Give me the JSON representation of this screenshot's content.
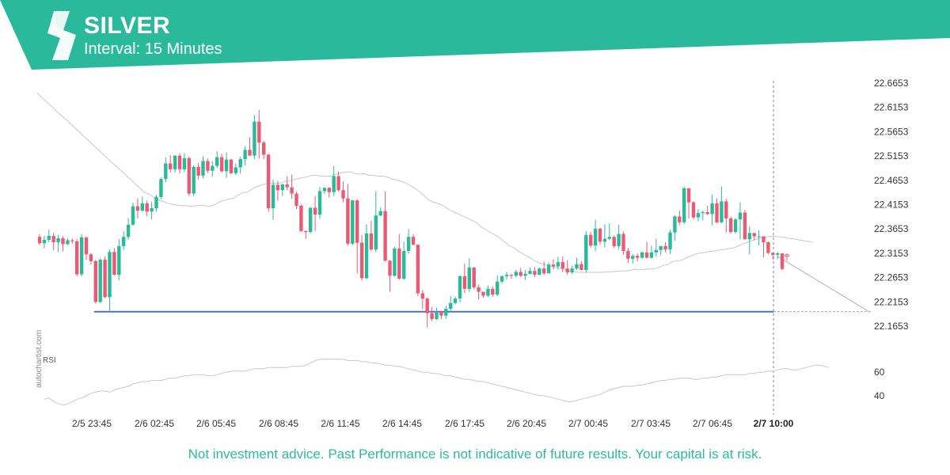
{
  "header": {
    "title": "SILVER",
    "subtitle": "Interval: 15 Minutes",
    "band_color": "#2aba9b",
    "logo": "autochartist-logo-icon"
  },
  "watermark": "autochartist.com",
  "footer": "Not investment advice. Past Performance is not indicative of future results. Your capital is at risk.",
  "colors": {
    "up": "#2aba9b",
    "down": "#ea5a72",
    "support": "#4a72c0",
    "ma": "#c8c8c8",
    "rsi": "#c8c8c8",
    "forecast": "#b0b0b0",
    "axis_text": "#333333"
  },
  "chart_data": {
    "type": "candlestick",
    "y_ticks": [
      "22.6653",
      "22.6153",
      "22.5653",
      "22.5153",
      "22.4653",
      "22.4153",
      "22.3653",
      "22.3153",
      "22.2653",
      "22.2153",
      "22.1653"
    ],
    "x_ticks": [
      "2/5 23:45",
      "2/6 02:45",
      "2/6 05:45",
      "2/6 08:45",
      "2/6 11:45",
      "2/6 14:45",
      "2/6 17:45",
      "2/6 20:45",
      "2/7 00:45",
      "2/7 03:45",
      "2/7 06:45"
    ],
    "highlight_time": "2/7 10:00",
    "ylim": [
      22.1503,
      22.6803
    ],
    "support_level": 22.195,
    "forecast_target": 22.195,
    "candles": [
      [
        22.349,
        22.336,
        22.355,
        22.332
      ],
      [
        22.336,
        22.343,
        22.351,
        22.325
      ],
      [
        22.343,
        22.351,
        22.364,
        22.338
      ],
      [
        22.351,
        22.338,
        22.357,
        22.321
      ],
      [
        22.338,
        22.346,
        22.353,
        22.318
      ],
      [
        22.346,
        22.334,
        22.35,
        22.319
      ],
      [
        22.334,
        22.342,
        22.346,
        22.332
      ],
      [
        22.342,
        22.34,
        22.345,
        22.335
      ],
      [
        22.34,
        22.272,
        22.345,
        22.268
      ],
      [
        22.272,
        22.348,
        22.355,
        22.268
      ],
      [
        22.348,
        22.313,
        22.349,
        22.302
      ],
      [
        22.313,
        22.299,
        22.316,
        22.292
      ],
      [
        22.299,
        22.215,
        22.302,
        22.212
      ],
      [
        22.215,
        22.302,
        22.305,
        22.213
      ],
      [
        22.302,
        22.225,
        22.309,
        22.223
      ],
      [
        22.225,
        22.318,
        22.323,
        22.193
      ],
      [
        22.318,
        22.271,
        22.326,
        22.27
      ],
      [
        22.271,
        22.33,
        22.344,
        22.26
      ],
      [
        22.33,
        22.349,
        22.36,
        22.322
      ],
      [
        22.349,
        22.374,
        22.388,
        22.343
      ],
      [
        22.374,
        22.412,
        22.419,
        22.372
      ],
      [
        22.412,
        22.403,
        22.428,
        22.387
      ],
      [
        22.403,
        22.418,
        22.432,
        22.401
      ],
      [
        22.418,
        22.401,
        22.424,
        22.391
      ],
      [
        22.401,
        22.408,
        22.421,
        22.385
      ],
      [
        22.408,
        22.431,
        22.435,
        22.401
      ],
      [
        22.431,
        22.468,
        22.471,
        22.427
      ],
      [
        22.468,
        22.5,
        22.512,
        22.461
      ],
      [
        22.5,
        22.488,
        22.517,
        22.482
      ],
      [
        22.488,
        22.516,
        22.517,
        22.481
      ],
      [
        22.516,
        22.488,
        22.521,
        22.479
      ],
      [
        22.488,
        22.511,
        22.521,
        22.482
      ],
      [
        22.511,
        22.438,
        22.514,
        22.433
      ],
      [
        22.438,
        22.493,
        22.496,
        22.433
      ],
      [
        22.493,
        22.475,
        22.501,
        22.467
      ],
      [
        22.475,
        22.505,
        22.515,
        22.469
      ],
      [
        22.505,
        22.485,
        22.51,
        22.48
      ],
      [
        22.485,
        22.495,
        22.505,
        22.473
      ],
      [
        22.495,
        22.513,
        22.525,
        22.491
      ],
      [
        22.513,
        22.484,
        22.52,
        22.481
      ],
      [
        22.484,
        22.508,
        22.523,
        22.47
      ],
      [
        22.508,
        22.48,
        22.509,
        22.478
      ],
      [
        22.48,
        22.492,
        22.5,
        22.476
      ],
      [
        22.492,
        22.509,
        22.514,
        22.479
      ],
      [
        22.509,
        22.528,
        22.536,
        22.496
      ],
      [
        22.528,
        22.516,
        22.554,
        22.516
      ],
      [
        22.516,
        22.586,
        22.6,
        22.509
      ],
      [
        22.586,
        22.543,
        22.61,
        22.51
      ],
      [
        22.543,
        22.518,
        22.546,
        22.509
      ],
      [
        22.518,
        22.408,
        22.52,
        22.401
      ],
      [
        22.408,
        22.456,
        22.467,
        22.384
      ],
      [
        22.456,
        22.445,
        22.464,
        22.423
      ],
      [
        22.445,
        22.457,
        22.458,
        22.433
      ],
      [
        22.457,
        22.451,
        22.474,
        22.445
      ],
      [
        22.451,
        22.438,
        22.477,
        22.427
      ],
      [
        22.438,
        22.413,
        22.442,
        22.406
      ],
      [
        22.413,
        22.361,
        22.416,
        22.359
      ],
      [
        22.361,
        22.359,
        22.362,
        22.345
      ],
      [
        22.359,
        22.409,
        22.409,
        22.356
      ],
      [
        22.409,
        22.395,
        22.433,
        22.361
      ],
      [
        22.395,
        22.443,
        22.452,
        22.386
      ],
      [
        22.443,
        22.45,
        22.45,
        22.437
      ],
      [
        22.45,
        22.441,
        22.451,
        22.43
      ],
      [
        22.441,
        22.474,
        22.495,
        22.433
      ],
      [
        22.474,
        22.445,
        22.484,
        22.442
      ],
      [
        22.445,
        22.428,
        22.463,
        22.42
      ],
      [
        22.428,
        22.335,
        22.458,
        22.331
      ],
      [
        22.335,
        22.424,
        22.425,
        22.332
      ],
      [
        22.424,
        22.337,
        22.427,
        22.274
      ],
      [
        22.337,
        22.264,
        22.353,
        22.259
      ],
      [
        22.264,
        22.356,
        22.375,
        22.262
      ],
      [
        22.356,
        22.323,
        22.382,
        22.32
      ],
      [
        22.323,
        22.393,
        22.443,
        22.318
      ],
      [
        22.393,
        22.402,
        22.41,
        22.391
      ],
      [
        22.402,
        22.3,
        22.443,
        22.298
      ],
      [
        22.3,
        22.269,
        22.301,
        22.236
      ],
      [
        22.269,
        22.325,
        22.329,
        22.267
      ],
      [
        22.325,
        22.263,
        22.355,
        22.261
      ],
      [
        22.263,
        22.32,
        22.339,
        22.26
      ],
      [
        22.32,
        22.349,
        22.365,
        22.314
      ],
      [
        22.349,
        22.333,
        22.354,
        22.331
      ],
      [
        22.333,
        22.233,
        22.333,
        22.227
      ],
      [
        22.233,
        22.222,
        22.24,
        22.2
      ],
      [
        22.222,
        22.192,
        22.225,
        22.163
      ],
      [
        22.192,
        22.18,
        22.205,
        22.176
      ],
      [
        22.18,
        22.195,
        22.203,
        22.178
      ],
      [
        22.195,
        22.187,
        22.196,
        22.18
      ],
      [
        22.187,
        22.201,
        22.207,
        22.18
      ],
      [
        22.201,
        22.213,
        22.227,
        22.195
      ],
      [
        22.213,
        22.222,
        22.226,
        22.21
      ],
      [
        22.222,
        22.268,
        22.27,
        22.214
      ],
      [
        22.268,
        22.242,
        22.294,
        22.233
      ],
      [
        22.242,
        22.286,
        22.305,
        22.236
      ],
      [
        22.286,
        22.245,
        22.287,
        22.242
      ],
      [
        22.245,
        22.236,
        22.251,
        22.22
      ],
      [
        22.236,
        22.228,
        22.235,
        22.224
      ],
      [
        22.228,
        22.242,
        22.249,
        22.225
      ],
      [
        22.242,
        22.23,
        22.246,
        22.226
      ],
      [
        22.23,
        22.257,
        22.27,
        22.227
      ],
      [
        22.257,
        22.268,
        22.27,
        22.253
      ],
      [
        22.268,
        22.271,
        22.277,
        22.261
      ],
      [
        22.271,
        22.269,
        22.272,
        22.263
      ],
      [
        22.269,
        22.277,
        22.281,
        22.266
      ],
      [
        22.277,
        22.269,
        22.285,
        22.266
      ],
      [
        22.269,
        22.273,
        22.281,
        22.26
      ],
      [
        22.273,
        22.279,
        22.286,
        22.272
      ],
      [
        22.279,
        22.271,
        22.287,
        22.266
      ],
      [
        22.271,
        22.284,
        22.286,
        22.27
      ],
      [
        22.284,
        22.274,
        22.298,
        22.271
      ],
      [
        22.274,
        22.292,
        22.296,
        22.274
      ],
      [
        22.292,
        22.288,
        22.303,
        22.282
      ],
      [
        22.288,
        22.297,
        22.308,
        22.282
      ],
      [
        22.297,
        22.284,
        22.309,
        22.276
      ],
      [
        22.284,
        22.276,
        22.301,
        22.271
      ],
      [
        22.276,
        22.284,
        22.29,
        22.273
      ],
      [
        22.284,
        22.293,
        22.306,
        22.281
      ],
      [
        22.293,
        22.281,
        22.299,
        22.28
      ],
      [
        22.281,
        22.353,
        22.361,
        22.276
      ],
      [
        22.353,
        22.331,
        22.359,
        22.327
      ],
      [
        22.331,
        22.366,
        22.384,
        22.32
      ],
      [
        22.366,
        22.339,
        22.368,
        22.333
      ],
      [
        22.339,
        22.345,
        22.375,
        22.327
      ],
      [
        22.345,
        22.349,
        22.377,
        22.342
      ],
      [
        22.349,
        22.33,
        22.352,
        22.326
      ],
      [
        22.33,
        22.355,
        22.374,
        22.323
      ],
      [
        22.355,
        22.32,
        22.36,
        22.312
      ],
      [
        22.32,
        22.304,
        22.326,
        22.295
      ],
      [
        22.304,
        22.31,
        22.313,
        22.294
      ],
      [
        22.31,
        22.306,
        22.315,
        22.299
      ],
      [
        22.306,
        22.317,
        22.319,
        22.304
      ],
      [
        22.317,
        22.306,
        22.339,
        22.305
      ],
      [
        22.306,
        22.317,
        22.331,
        22.304
      ],
      [
        22.317,
        22.322,
        22.345,
        22.308
      ],
      [
        22.322,
        22.33,
        22.33,
        22.311
      ],
      [
        22.33,
        22.323,
        22.338,
        22.317
      ],
      [
        22.323,
        22.358,
        22.364,
        22.314
      ],
      [
        22.358,
        22.391,
        22.393,
        22.341
      ],
      [
        22.391,
        22.379,
        22.403,
        22.373
      ],
      [
        22.379,
        22.449,
        22.452,
        22.375
      ],
      [
        22.449,
        22.42,
        22.449,
        22.387
      ],
      [
        22.42,
        22.389,
        22.423,
        22.385
      ],
      [
        22.389,
        22.398,
        22.406,
        22.381
      ],
      [
        22.398,
        22.4,
        22.403,
        22.383
      ],
      [
        22.4,
        22.396,
        22.413,
        22.394
      ],
      [
        22.396,
        22.418,
        22.436,
        22.373
      ],
      [
        22.418,
        22.379,
        22.428,
        22.377
      ],
      [
        22.379,
        22.422,
        22.453,
        22.377
      ],
      [
        22.422,
        22.387,
        22.427,
        22.358
      ],
      [
        22.387,
        22.359,
        22.391,
        22.356
      ],
      [
        22.359,
        22.385,
        22.388,
        22.356
      ],
      [
        22.385,
        22.399,
        22.42,
        22.344
      ],
      [
        22.399,
        22.344,
        22.404,
        22.344
      ],
      [
        22.344,
        22.357,
        22.371,
        22.313
      ],
      [
        22.357,
        22.35,
        22.35,
        22.342
      ],
      [
        22.35,
        22.35,
        22.362,
        22.331
      ],
      [
        22.35,
        22.338,
        22.342,
        22.307
      ],
      [
        22.338,
        22.316,
        22.34,
        22.313
      ],
      [
        22.316,
        22.312,
        22.315,
        22.302
      ],
      [
        22.312,
        22.315,
        22.318,
        22.303
      ],
      [
        22.315,
        22.283,
        22.315,
        22.28
      ]
    ],
    "forecast_candles": [
      [
        22.312,
        22.309,
        22.315,
        22.3
      ]
    ],
    "ma": [
      22.645,
      22.636,
      22.627,
      22.618,
      22.609,
      22.6,
      22.592,
      22.583,
      22.574,
      22.565,
      22.556,
      22.547,
      22.538,
      22.529,
      22.52,
      22.511,
      22.502,
      22.494,
      22.485,
      22.476,
      22.467,
      22.458,
      22.449,
      22.44,
      22.437,
      22.43,
      22.425,
      22.422,
      22.418,
      22.416,
      22.414,
      22.413,
      22.413,
      22.412,
      22.413,
      22.414,
      22.413,
      22.412,
      22.415,
      22.421,
      22.424,
      22.427,
      22.428,
      22.435,
      22.44,
      22.441,
      22.447,
      22.452,
      22.456,
      22.458,
      22.46,
      22.459,
      22.46,
      22.463,
      22.464,
      22.467,
      22.469,
      22.471,
      22.473,
      22.476,
      22.475,
      22.474,
      22.474,
      22.474,
      22.478,
      22.481,
      22.482,
      22.483,
      22.479,
      22.478,
      22.479,
      22.476,
      22.475,
      22.474,
      22.474,
      22.472,
      22.468,
      22.466,
      22.463,
      22.459,
      22.454,
      22.448,
      22.441,
      22.432,
      22.424,
      22.42,
      22.417,
      22.413,
      22.406,
      22.401,
      22.397,
      22.392,
      22.388,
      22.383,
      22.379,
      22.37,
      22.364,
      22.358,
      22.353,
      22.347,
      22.339,
      22.331,
      22.327,
      22.32,
      22.314,
      22.309,
      22.303,
      22.297,
      22.294,
      22.291,
      22.288,
      22.286,
      22.284,
      22.281,
      22.279,
      22.277,
      22.276,
      22.276,
      22.276,
      22.276,
      22.276,
      22.276,
      22.277,
      22.277,
      22.278,
      22.279,
      22.279,
      22.28,
      22.283,
      22.281,
      22.282,
      22.283,
      22.283,
      22.286,
      22.29,
      22.292,
      22.298,
      22.3,
      22.301,
      22.306,
      22.31,
      22.314,
      22.316,
      22.317,
      22.319,
      22.32,
      22.322,
      22.323,
      22.325,
      22.326,
      22.33,
      22.334,
      22.338,
      22.341,
      22.344,
      22.347,
      22.349,
      22.35,
      22.35,
      22.349,
      22.348,
      22.346,
      22.345,
      22.343,
      22.341,
      22.34,
      22.338
    ],
    "rsi_ticks": [
      60,
      40
    ],
    "rsi_ylim": [
      25,
      75
    ],
    "rsi": [
      37,
      38,
      35,
      33,
      32,
      33,
      35,
      37,
      38,
      40,
      42,
      43,
      44,
      44,
      43,
      45,
      46,
      47,
      48,
      50,
      51,
      52,
      52,
      53,
      53,
      53,
      54,
      55,
      55,
      56,
      57,
      57,
      58,
      58,
      58,
      57,
      57,
      58,
      59,
      60,
      61,
      61,
      61,
      61,
      62,
      63,
      63,
      63,
      64,
      64,
      64,
      64,
      64,
      65,
      65,
      65,
      66,
      68,
      70,
      71,
      71,
      71,
      71,
      71,
      71,
      70,
      70,
      70,
      69,
      69,
      68,
      68,
      67,
      66,
      66,
      65,
      65,
      64,
      63,
      62,
      61,
      60,
      60,
      59,
      59,
      58,
      57,
      57,
      56,
      55,
      54,
      54,
      53,
      52,
      52,
      51,
      50,
      49,
      48,
      47,
      46,
      45,
      44,
      43,
      42,
      41,
      40,
      40,
      39,
      38,
      37,
      36,
      35,
      35,
      36,
      37,
      38,
      39,
      40,
      41,
      43,
      45,
      46,
      47,
      48,
      48,
      48,
      49,
      49,
      50,
      51,
      52,
      53,
      53,
      54,
      54,
      55,
      55,
      55,
      54,
      54,
      55,
      55,
      56,
      56,
      57,
      58,
      58,
      58,
      58,
      58,
      59,
      59,
      60,
      60,
      61,
      61,
      62,
      63,
      63,
      62,
      62,
      63,
      64,
      65,
      66,
      66,
      65,
      64
    ]
  }
}
